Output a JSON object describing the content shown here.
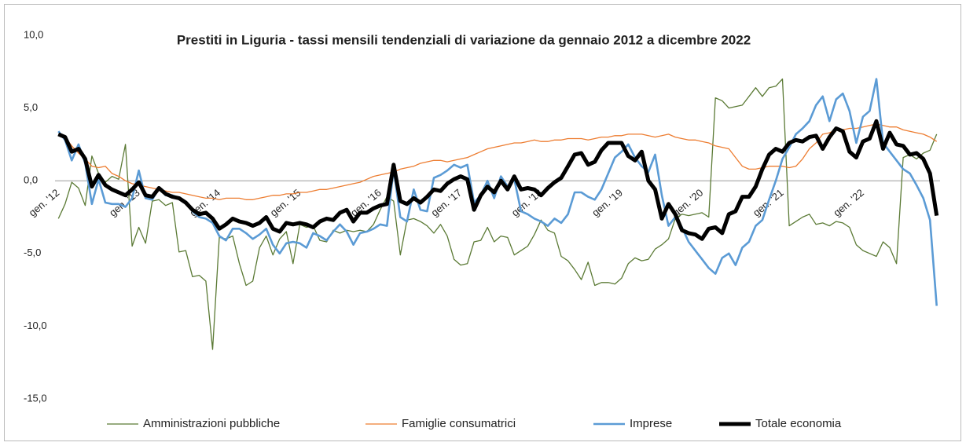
{
  "chart_data": {
    "type": "line",
    "title": "Prestiti in Liguria - tassi mensili tendenziali di variazione da gennaio 2012  a dicembre 2022",
    "categories": [
      "gen. '12",
      null,
      null,
      null,
      null,
      null,
      null,
      null,
      null,
      null,
      null,
      null,
      "gen. '13",
      null,
      null,
      null,
      null,
      null,
      null,
      null,
      null,
      null,
      null,
      null,
      "gen. '14",
      null,
      null,
      null,
      null,
      null,
      null,
      null,
      null,
      null,
      null,
      null,
      "gen. '15",
      null,
      null,
      null,
      null,
      null,
      null,
      null,
      null,
      null,
      null,
      null,
      "gen. '16",
      null,
      null,
      null,
      null,
      null,
      null,
      null,
      null,
      null,
      null,
      null,
      "gen. '17",
      null,
      null,
      null,
      null,
      null,
      null,
      null,
      null,
      null,
      null,
      null,
      "gen. '18",
      null,
      null,
      null,
      null,
      null,
      null,
      null,
      null,
      null,
      null,
      null,
      "gen. '19",
      null,
      null,
      null,
      null,
      null,
      null,
      null,
      null,
      null,
      null,
      null,
      "gen. '20",
      null,
      null,
      null,
      null,
      null,
      null,
      null,
      null,
      null,
      null,
      null,
      "gen. '21",
      null,
      null,
      null,
      null,
      null,
      null,
      null,
      null,
      null,
      null,
      null,
      "gen. '22",
      null,
      null,
      null,
      null,
      null,
      null,
      null,
      null,
      null,
      null,
      null
    ],
    "series": [
      {
        "name": "Amministrazioni pubbliche",
        "color": "#5b7a35",
        "width": 1.3,
        "values": [
          -2.6,
          -1.6,
          -0.1,
          -0.5,
          -1.7,
          1.7,
          0.5,
          -0.1,
          0.3,
          0.1,
          2.5,
          -4.5,
          -3.2,
          -4.3,
          -1.4,
          -1.3,
          -1.7,
          -1.5,
          -4.9,
          -4.8,
          -6.6,
          -6.5,
          -6.9,
          -11.6,
          -3.9,
          -4.0,
          -3.8,
          -5.7,
          -7.2,
          -6.9,
          -4.6,
          -3.8,
          -5.1,
          -4.0,
          -3.5,
          -5.7,
          -3.0,
          -3.2,
          -3.1,
          -4.1,
          -4.2,
          -3.4,
          -3.6,
          -3.4,
          -3.5,
          -3.4,
          -3.5,
          -3.0,
          -2.0,
          -1.1,
          -1.4,
          -5.1,
          -2.7,
          -2.6,
          -2.8,
          -3.1,
          -3.6,
          -3.0,
          -3.8,
          -5.4,
          -5.8,
          -5.7,
          -4.2,
          -4.1,
          -3.2,
          -4.2,
          -3.8,
          -3.9,
          -5.1,
          -4.8,
          -4.5,
          -3.7,
          -2.7,
          -3.4,
          -3.6,
          -5.2,
          -5.5,
          -6.1,
          -6.8,
          -5.6,
          -7.2,
          -7.0,
          -7.0,
          -7.1,
          -6.7,
          -5.7,
          -5.3,
          -5.5,
          -5.4,
          -4.7,
          -4.4,
          -4.0,
          -2.6,
          -2.3,
          -2.4,
          -2.3,
          -2.2,
          -2.5,
          5.7,
          5.5,
          5.0,
          5.1,
          5.2,
          5.8,
          6.4,
          5.8,
          6.4,
          6.5,
          7.0,
          -3.1,
          -2.8,
          -2.5,
          -2.3,
          -3.0,
          -2.9,
          -3.1,
          -2.8,
          -2.9,
          -3.2,
          -4.4,
          -4.8,
          -5.0,
          -5.2,
          -4.2,
          -4.6,
          -5.7,
          1.6,
          1.8,
          1.5,
          1.9,
          2.1,
          3.2
        ]
      },
      {
        "name": "Famiglie consumatrici",
        "color": "#ed7d31",
        "width": 1.3,
        "values": [
          3.2,
          3.0,
          2.4,
          1.9,
          1.5,
          1.0,
          0.9,
          1.0,
          0.5,
          0.3,
          0.0,
          -0.2,
          -0.3,
          -0.4,
          -0.5,
          -0.6,
          -0.7,
          -0.8,
          -0.8,
          -0.9,
          -1.0,
          -1.1,
          -1.2,
          -1.2,
          -1.3,
          -1.2,
          -1.2,
          -1.2,
          -1.3,
          -1.3,
          -1.2,
          -1.1,
          -1.0,
          -1.0,
          -0.9,
          -0.9,
          -0.8,
          -0.8,
          -0.7,
          -0.6,
          -0.6,
          -0.5,
          -0.4,
          -0.3,
          -0.2,
          -0.1,
          0.1,
          0.3,
          0.4,
          0.5,
          0.6,
          0.8,
          0.9,
          1.0,
          1.2,
          1.3,
          1.4,
          1.4,
          1.3,
          1.4,
          1.5,
          1.6,
          1.8,
          2.0,
          2.2,
          2.3,
          2.4,
          2.5,
          2.6,
          2.6,
          2.7,
          2.8,
          2.7,
          2.7,
          2.8,
          2.8,
          2.9,
          2.9,
          2.9,
          2.8,
          2.9,
          3.0,
          3.0,
          3.1,
          3.1,
          3.2,
          3.2,
          3.2,
          3.1,
          3.0,
          3.1,
          3.2,
          3.0,
          2.9,
          2.8,
          2.8,
          2.7,
          2.6,
          2.4,
          2.3,
          2.2,
          1.6,
          1.0,
          0.8,
          0.8,
          0.9,
          1.0,
          1.0,
          1.0,
          0.9,
          1.0,
          1.5,
          2.2,
          2.6,
          3.2,
          3.3,
          3.5,
          3.5,
          3.6,
          3.6,
          3.7,
          3.8,
          3.9,
          3.8,
          3.7,
          3.7,
          3.5,
          3.4,
          3.3,
          3.2,
          3.0,
          2.7
        ]
      },
      {
        "name": "Imprese",
        "color": "#5b9bd5",
        "width": 2.6,
        "values": [
          3.4,
          2.8,
          1.4,
          2.5,
          1.2,
          -1.6,
          0.1,
          -1.5,
          -1.6,
          -1.6,
          -1.8,
          -1.2,
          0.7,
          -1.2,
          -1.3,
          -0.5,
          -1.0,
          -1.0,
          -1.2,
          -1.5,
          -2.1,
          -2.5,
          -2.6,
          -2.9,
          -3.8,
          -4.1,
          -3.3,
          -3.3,
          -3.6,
          -4.0,
          -3.7,
          -3.3,
          -4.4,
          -5.0,
          -4.3,
          -4.2,
          -4.3,
          -4.6,
          -3.6,
          -3.8,
          -4.1,
          -3.5,
          -3.0,
          -3.5,
          -4.4,
          -3.6,
          -3.5,
          -3.3,
          -3.0,
          -3.1,
          0.8,
          -2.5,
          -2.8,
          -0.6,
          -2.0,
          -2.1,
          0.2,
          0.4,
          0.7,
          1.1,
          0.9,
          1.1,
          -1.5,
          -1.0,
          0.0,
          -1.2,
          0.3,
          -0.4,
          0.1,
          -2.1,
          -2.3,
          -2.6,
          -2.8,
          -3.1,
          -2.6,
          -2.9,
          -2.3,
          -0.8,
          -0.8,
          -1.1,
          -1.3,
          -0.6,
          0.5,
          1.6,
          2.0,
          2.5,
          1.6,
          1.0,
          0.6,
          1.8,
          -1.0,
          -3.1,
          -2.5,
          -3.2,
          -4.2,
          -4.8,
          -5.4,
          -6.0,
          -6.4,
          -5.3,
          -5.0,
          -5.8,
          -4.6,
          -4.2,
          -3.1,
          -2.7,
          -1.3,
          0.0,
          1.5,
          2.3,
          3.2,
          3.6,
          4.1,
          5.2,
          5.8,
          4.1,
          5.6,
          6.0,
          4.8,
          2.6,
          4.4,
          4.8,
          7.0,
          2.6,
          2.0,
          1.4,
          0.8,
          0.5,
          -0.3,
          -1.2,
          -2.7,
          -8.6
        ]
      },
      {
        "name": "Totale economia",
        "color": "#000000",
        "width": 5,
        "values": [
          3.2,
          3.0,
          2.0,
          2.2,
          1.5,
          -0.4,
          0.4,
          -0.3,
          -0.6,
          -0.8,
          -1.0,
          -0.6,
          -0.1,
          -1.0,
          -1.1,
          -0.5,
          -0.9,
          -1.1,
          -1.2,
          -1.5,
          -2.0,
          -2.3,
          -2.2,
          -2.6,
          -3.3,
          -3.0,
          -2.6,
          -2.8,
          -2.9,
          -3.1,
          -2.9,
          -2.5,
          -3.3,
          -3.5,
          -2.9,
          -3.0,
          -2.9,
          -3.0,
          -3.2,
          -2.8,
          -2.6,
          -2.7,
          -2.2,
          -2.0,
          -2.8,
          -2.2,
          -2.2,
          -1.9,
          -1.7,
          -1.6,
          1.1,
          -1.4,
          -1.6,
          -1.2,
          -1.5,
          -1.1,
          -0.6,
          -0.7,
          -0.2,
          0.1,
          0.3,
          0.1,
          -2.0,
          -1.0,
          -0.4,
          -0.8,
          0.0,
          -0.6,
          0.3,
          -0.6,
          -0.5,
          -0.6,
          -1.0,
          -0.5,
          -0.1,
          0.2,
          1.0,
          1.8,
          1.9,
          1.1,
          1.3,
          2.1,
          2.6,
          2.6,
          2.6,
          1.7,
          1.4,
          2.0,
          0.0,
          -0.6,
          -2.6,
          -1.6,
          -2.3,
          -3.4,
          -3.6,
          -3.7,
          -4.0,
          -3.3,
          -3.2,
          -3.6,
          -2.3,
          -2.1,
          -1.1,
          -1.1,
          -0.4,
          0.8,
          1.8,
          2.2,
          2.0,
          2.6,
          2.8,
          2.7,
          3.0,
          3.1,
          2.2,
          3.0,
          3.6,
          3.4,
          2.0,
          1.6,
          2.7,
          2.9,
          4.1,
          2.2,
          3.3,
          2.5,
          2.4,
          1.8,
          1.9,
          1.5,
          0.5,
          -2.4
        ]
      }
    ],
    "ylim": [
      -15,
      10
    ],
    "yticks": [
      {
        "value": -15,
        "label": "-15,0"
      },
      {
        "value": -10,
        "label": "-10,0"
      },
      {
        "value": -5,
        "label": "-5,0"
      },
      {
        "value": 0,
        "label": "0,0"
      },
      {
        "value": 5,
        "label": "5,0"
      },
      {
        "value": 10,
        "label": "10,0"
      }
    ],
    "grid": false,
    "legend": "bottom"
  }
}
